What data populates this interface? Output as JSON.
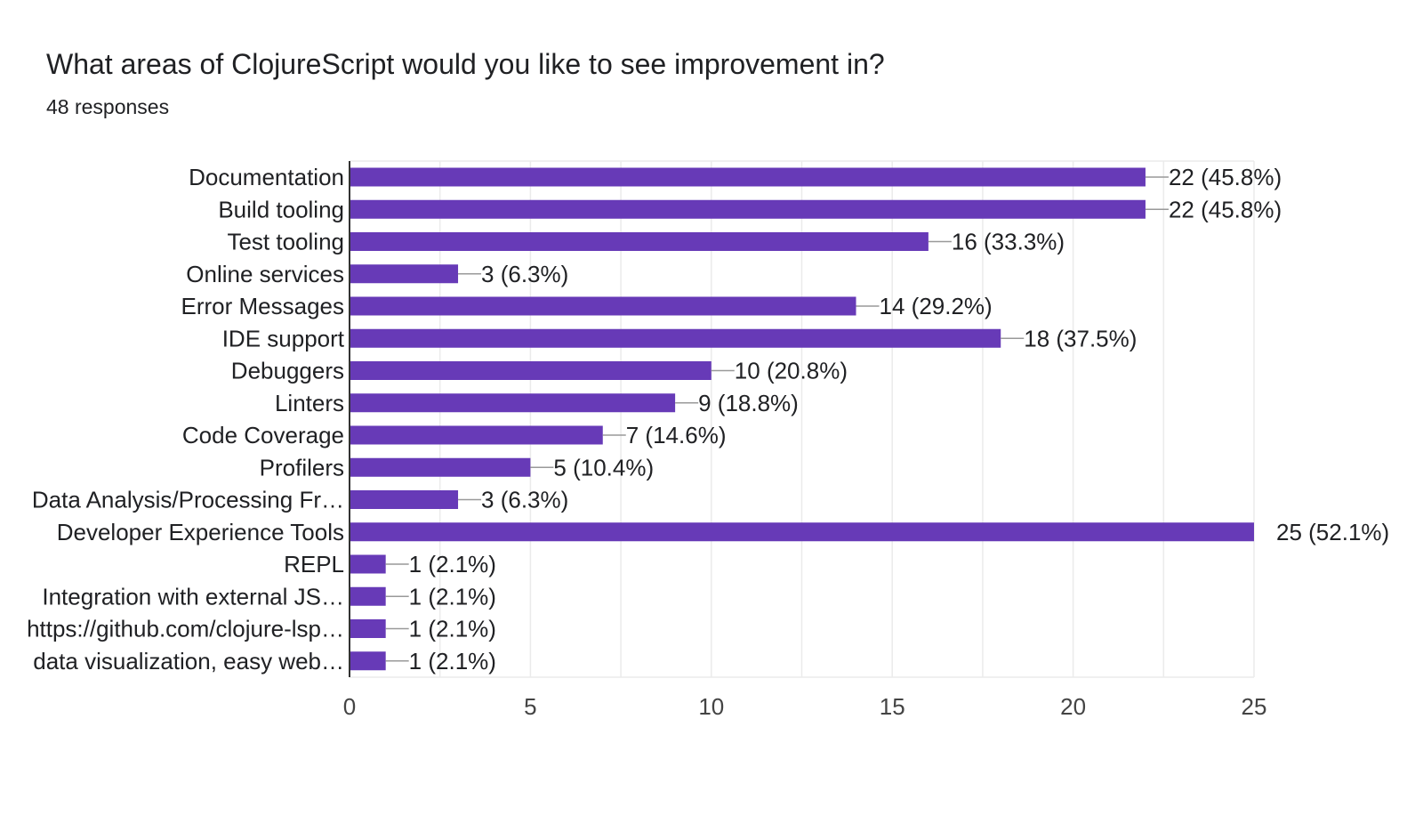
{
  "header": {
    "title": "What areas of ClojureScript would you like to see improvement in?",
    "subtitle": "48 responses"
  },
  "colors": {
    "bar": "#673ab7",
    "grid": "#ebebeb",
    "axis": "#333333",
    "leader": "#999999"
  },
  "chart_data": {
    "type": "bar",
    "orientation": "horizontal",
    "title": "What areas of ClojureScript would you like to see improvement in?",
    "subtitle": "48 responses",
    "categories": [
      "Documentation",
      "Build tooling",
      "Test tooling",
      "Online services",
      "Error Messages",
      "IDE support",
      "Debuggers",
      "Linters",
      "Code Coverage",
      "Profilers",
      "Data Analysis/Processing Fr…",
      "Developer Experience Tools",
      "REPL",
      "Integration with external JS…",
      "https://github.com/clojure-lsp…",
      "data visualization, easy web…"
    ],
    "values": [
      22,
      22,
      16,
      3,
      14,
      18,
      10,
      9,
      7,
      5,
      3,
      25,
      1,
      1,
      1,
      1
    ],
    "labels": [
      "22 (45.8%)",
      "22 (45.8%)",
      "16 (33.3%)",
      "3 (6.3%)",
      "14 (29.2%)",
      "18 (37.5%)",
      "10 (20.8%)",
      "9 (18.8%)",
      "7 (14.6%)",
      "5 (10.4%)",
      "3 (6.3%)",
      "25 (52.1%)",
      "1 (2.1%)",
      "1 (2.1%)",
      "1 (2.1%)",
      "1 (2.1%)"
    ],
    "xlim": [
      0,
      25
    ],
    "xticks": [
      0,
      5,
      10,
      15,
      20,
      25
    ],
    "grid": true,
    "legend": "none"
  }
}
